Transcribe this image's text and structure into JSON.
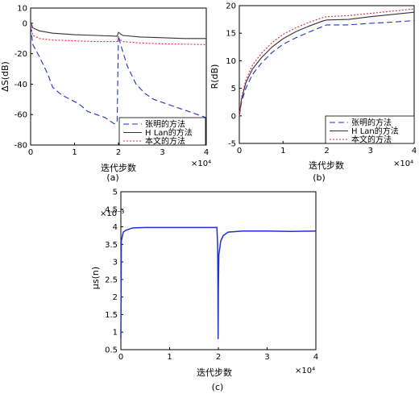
{
  "chart_data": [
    {
      "id": "a",
      "type": "line",
      "caption": "(a)",
      "xlabel": "迭代步数",
      "ylabel": "ΔS(dB)",
      "x_exponent": "×10⁴",
      "xlim": [
        0,
        4
      ],
      "ylim": [
        -80,
        10
      ],
      "xticks": [
        "0",
        "1",
        "2",
        "3",
        "4"
      ],
      "yticks": [
        "-80",
        "-60",
        "-40",
        "-20",
        "0",
        "10"
      ],
      "legend_position": "bottom-right",
      "series": [
        {
          "name": "张明的方法",
          "color": "#1f2fd6",
          "style": "dashed",
          "points": [
            [
              0,
              -2
            ],
            [
              0.05,
              -14
            ],
            [
              0.2,
              -22
            ],
            [
              0.4,
              -34
            ],
            [
              0.5,
              -42
            ],
            [
              0.7,
              -47
            ],
            [
              0.9,
              -50
            ],
            [
              1.1,
              -53
            ],
            [
              1.3,
              -58
            ],
            [
              1.5,
              -60
            ],
            [
              1.7,
              -62
            ],
            [
              1.9,
              -66
            ],
            [
              1.97,
              -65
            ],
            [
              2.0,
              -8
            ],
            [
              2.05,
              -14
            ],
            [
              2.2,
              -28
            ],
            [
              2.4,
              -40
            ],
            [
              2.6,
              -46
            ],
            [
              2.8,
              -50
            ],
            [
              3.0,
              -52
            ],
            [
              3.2,
              -54
            ],
            [
              3.4,
              -56
            ],
            [
              3.6,
              -58
            ],
            [
              3.8,
              -60
            ],
            [
              4.0,
              -62
            ]
          ]
        },
        {
          "name": "H Lan的方法",
          "color": "#333333",
          "style": "solid",
          "points": [
            [
              0,
              1
            ],
            [
              0.05,
              -3
            ],
            [
              0.2,
              -5
            ],
            [
              0.5,
              -6.5
            ],
            [
              1.0,
              -7.5
            ],
            [
              1.5,
              -8
            ],
            [
              1.97,
              -8.5
            ],
            [
              2.0,
              -6
            ],
            [
              2.1,
              -8
            ],
            [
              2.5,
              -9
            ],
            [
              3.0,
              -9.5
            ],
            [
              3.5,
              -10
            ],
            [
              4.0,
              -10
            ]
          ]
        },
        {
          "name": "本文的方法",
          "color": "#e4262e",
          "style": "dotted",
          "points": [
            [
              0,
              0
            ],
            [
              0.05,
              -8
            ],
            [
              0.2,
              -10
            ],
            [
              0.5,
              -11
            ],
            [
              1.0,
              -11.5
            ],
            [
              1.5,
              -12
            ],
            [
              1.97,
              -12
            ],
            [
              2.0,
              -10
            ],
            [
              2.1,
              -12
            ],
            [
              2.5,
              -13
            ],
            [
              3.0,
              -13.5
            ],
            [
              4.0,
              -14
            ]
          ]
        }
      ]
    },
    {
      "id": "b",
      "type": "line",
      "caption": "(b)",
      "xlabel": "迭代步数",
      "ylabel": "R(dB)",
      "x_exponent": "×10⁴",
      "xlim": [
        0,
        4
      ],
      "ylim": [
        -5,
        20
      ],
      "xticks": [
        "0",
        "1",
        "2",
        "3",
        "4"
      ],
      "yticks": [
        "-5",
        "0",
        "5",
        "10",
        "15",
        "20"
      ],
      "legend_position": "bottom-right",
      "series": [
        {
          "name": "张明的方法",
          "color": "#1f2fd6",
          "style": "dashed",
          "points": [
            [
              0,
              0
            ],
            [
              0.05,
              2.5
            ],
            [
              0.15,
              5
            ],
            [
              0.3,
              7.5
            ],
            [
              0.5,
              9.5
            ],
            [
              0.75,
              11.5
            ],
            [
              1.0,
              13
            ],
            [
              1.3,
              14.2
            ],
            [
              1.6,
              15.2
            ],
            [
              1.9,
              16.2
            ],
            [
              2.0,
              16.5
            ],
            [
              2.5,
              16.5
            ],
            [
              3.0,
              16.8
            ],
            [
              3.5,
              17
            ],
            [
              4.0,
              17.3
            ]
          ]
        },
        {
          "name": "H Lan的方法",
          "color": "#333333",
          "style": "solid",
          "points": [
            [
              0,
              0
            ],
            [
              0.05,
              3
            ],
            [
              0.15,
              6
            ],
            [
              0.3,
              8.5
            ],
            [
              0.5,
              10.5
            ],
            [
              0.75,
              12.5
            ],
            [
              1.0,
              14
            ],
            [
              1.3,
              15.3
            ],
            [
              1.6,
              16.3
            ],
            [
              1.9,
              17.2
            ],
            [
              2.0,
              17.4
            ],
            [
              2.5,
              17.5
            ],
            [
              3.0,
              18
            ],
            [
              3.5,
              18.4
            ],
            [
              4.0,
              18.8
            ]
          ]
        },
        {
          "name": "本文的方法",
          "color": "#e4262e",
          "style": "dotted",
          "points": [
            [
              0,
              0
            ],
            [
              0.05,
              3.3
            ],
            [
              0.15,
              6.5
            ],
            [
              0.3,
              9.2
            ],
            [
              0.5,
              11.3
            ],
            [
              0.75,
              13.3
            ],
            [
              1.0,
              14.8
            ],
            [
              1.3,
              16
            ],
            [
              1.6,
              17
            ],
            [
              1.9,
              17.8
            ],
            [
              2.0,
              18
            ],
            [
              2.5,
              18.2
            ],
            [
              3.0,
              18.6
            ],
            [
              3.5,
              19
            ],
            [
              4.0,
              19.4
            ]
          ]
        }
      ]
    },
    {
      "id": "c",
      "type": "line",
      "caption": "(c)",
      "xlabel": "迭代步数",
      "ylabel": "μs(n)",
      "y_exponent": "×10⁻³",
      "x_exponent": "×10⁴",
      "xlim": [
        0,
        4
      ],
      "ylim": [
        0.5,
        5
      ],
      "xticks": [
        "0",
        "1",
        "2",
        "3",
        "4"
      ],
      "yticks": [
        "0.5",
        "1",
        "1.5",
        "2",
        "2.5",
        "3",
        "3.5",
        "4",
        "4.5",
        "5"
      ],
      "series": [
        {
          "name": "",
          "color": "#1f2fd6",
          "style": "solid",
          "points": [
            [
              0,
              0.8
            ],
            [
              0.01,
              3.6
            ],
            [
              0.05,
              3.85
            ],
            [
              0.1,
              3.9
            ],
            [
              0.2,
              3.95
            ],
            [
              0.25,
              3.97
            ],
            [
              0.5,
              3.98
            ],
            [
              1.0,
              3.98
            ],
            [
              1.5,
              3.98
            ],
            [
              1.97,
              3.98
            ],
            [
              1.985,
              3.5
            ],
            [
              1.99,
              2.5
            ],
            [
              1.995,
              0.8
            ],
            [
              2.0,
              2.2
            ],
            [
              2.01,
              3.2
            ],
            [
              2.05,
              3.6
            ],
            [
              2.1,
              3.75
            ],
            [
              2.2,
              3.85
            ],
            [
              2.5,
              3.88
            ],
            [
              3.0,
              3.88
            ],
            [
              3.5,
              3.87
            ],
            [
              4.0,
              3.88
            ]
          ]
        }
      ]
    }
  ]
}
